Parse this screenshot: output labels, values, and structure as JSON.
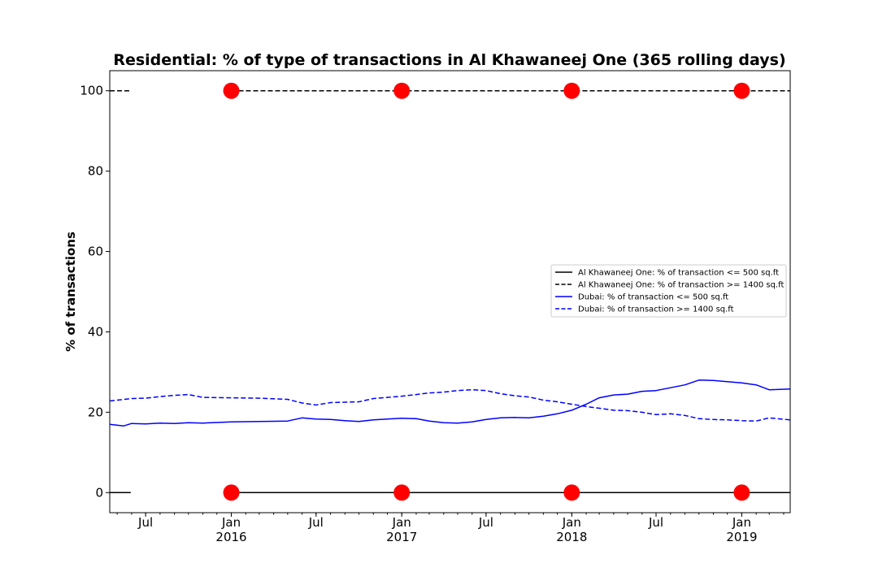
{
  "chart_data": {
    "type": "line",
    "title": "Residential: % of type of transactions in Al Khawaneej One (365 rolling days)",
    "ylabel": "% of transactions",
    "xlabel": "",
    "xlim": [
      "2015-04-15",
      "2019-04-15"
    ],
    "ylim": [
      -5,
      105
    ],
    "y_ticks": [
      0,
      20,
      40,
      60,
      80,
      100
    ],
    "x_ticks": [
      {
        "date": "2015-07-01",
        "label": "Jul",
        "sublabel": ""
      },
      {
        "date": "2016-01-01",
        "label": "Jan",
        "sublabel": "2016"
      },
      {
        "date": "2016-07-01",
        "label": "Jul",
        "sublabel": ""
      },
      {
        "date": "2017-01-01",
        "label": "Jan",
        "sublabel": "2017"
      },
      {
        "date": "2017-07-01",
        "label": "Jul",
        "sublabel": ""
      },
      {
        "date": "2018-01-01",
        "label": "Jan",
        "sublabel": "2018"
      },
      {
        "date": "2018-07-01",
        "label": "Jul",
        "sublabel": ""
      },
      {
        "date": "2019-01-01",
        "label": "Jan",
        "sublabel": "2019"
      }
    ],
    "legend_position": "center-right",
    "series": [
      {
        "name": "Al Khawaneej One: % of transaction <= 500 sq.ft",
        "color": "#000000",
        "style": "solid",
        "segments": [
          [
            [
              "2015-04-15",
              0
            ],
            [
              "2015-05-30",
              0
            ]
          ],
          [
            [
              "2016-01-01",
              0
            ],
            [
              "2019-04-15",
              0
            ]
          ]
        ]
      },
      {
        "name": "Al Khawaneej One: % of transaction >= 1400 sq.ft",
        "color": "#000000",
        "style": "dashed",
        "segments": [
          [
            [
              "2015-04-15",
              100
            ],
            [
              "2015-05-30",
              100
            ]
          ],
          [
            [
              "2016-01-01",
              100
            ],
            [
              "2019-04-15",
              100
            ]
          ]
        ]
      },
      {
        "name": "Dubai: % of transaction <= 500 sq.ft",
        "color": "#0000ff",
        "style": "solid",
        "points": [
          [
            "2015-04-15",
            17.0
          ],
          [
            "2015-05-15",
            16.6
          ],
          [
            "2015-06-01",
            17.2
          ],
          [
            "2015-07-01",
            17.1
          ],
          [
            "2015-08-01",
            17.3
          ],
          [
            "2015-09-01",
            17.2
          ],
          [
            "2015-10-01",
            17.4
          ],
          [
            "2015-11-01",
            17.3
          ],
          [
            "2016-01-01",
            17.6
          ],
          [
            "2016-03-01",
            17.7
          ],
          [
            "2016-05-01",
            17.8
          ],
          [
            "2016-06-01",
            18.6
          ],
          [
            "2016-07-01",
            18.3
          ],
          [
            "2016-08-01",
            18.2
          ],
          [
            "2016-09-01",
            17.9
          ],
          [
            "2016-10-01",
            17.7
          ],
          [
            "2016-11-01",
            18.1
          ],
          [
            "2016-12-01",
            18.3
          ],
          [
            "2017-01-01",
            18.5
          ],
          [
            "2017-02-01",
            18.4
          ],
          [
            "2017-03-01",
            17.8
          ],
          [
            "2017-04-01",
            17.4
          ],
          [
            "2017-05-01",
            17.3
          ],
          [
            "2017-06-01",
            17.6
          ],
          [
            "2017-07-01",
            18.2
          ],
          [
            "2017-08-01",
            18.6
          ],
          [
            "2017-09-01",
            18.7
          ],
          [
            "2017-10-01",
            18.6
          ],
          [
            "2017-11-01",
            19.0
          ],
          [
            "2017-12-01",
            19.6
          ],
          [
            "2018-01-01",
            20.5
          ],
          [
            "2018-02-01",
            22.0
          ],
          [
            "2018-03-01",
            23.6
          ],
          [
            "2018-04-01",
            24.3
          ],
          [
            "2018-05-01",
            24.5
          ],
          [
            "2018-06-01",
            25.2
          ],
          [
            "2018-07-01",
            25.4
          ],
          [
            "2018-08-01",
            26.1
          ],
          [
            "2018-09-01",
            26.8
          ],
          [
            "2018-10-01",
            28.0
          ],
          [
            "2018-11-01",
            27.9
          ],
          [
            "2018-12-01",
            27.6
          ],
          [
            "2019-01-01",
            27.3
          ],
          [
            "2019-02-01",
            26.8
          ],
          [
            "2019-03-01",
            25.6
          ],
          [
            "2019-04-15",
            25.8
          ]
        ]
      },
      {
        "name": "Dubai: % of transaction >= 1400 sq.ft",
        "color": "#0000ff",
        "style": "dashed",
        "points": [
          [
            "2015-04-15",
            22.8
          ],
          [
            "2015-06-01",
            23.4
          ],
          [
            "2015-07-01",
            23.5
          ],
          [
            "2015-08-01",
            23.9
          ],
          [
            "2015-09-01",
            24.2
          ],
          [
            "2015-10-01",
            24.4
          ],
          [
            "2015-11-01",
            23.7
          ],
          [
            "2016-01-01",
            23.6
          ],
          [
            "2016-03-01",
            23.5
          ],
          [
            "2016-05-01",
            23.2
          ],
          [
            "2016-06-01",
            22.3
          ],
          [
            "2016-07-01",
            21.8
          ],
          [
            "2016-08-01",
            22.4
          ],
          [
            "2016-10-01",
            22.6
          ],
          [
            "2016-11-01",
            23.4
          ],
          [
            "2017-01-01",
            24.0
          ],
          [
            "2017-02-01",
            24.4
          ],
          [
            "2017-03-01",
            24.8
          ],
          [
            "2017-04-01",
            25.0
          ],
          [
            "2017-05-01",
            25.4
          ],
          [
            "2017-06-01",
            25.6
          ],
          [
            "2017-07-01",
            25.4
          ],
          [
            "2017-08-01",
            24.6
          ],
          [
            "2017-09-01",
            24.1
          ],
          [
            "2017-10-01",
            23.8
          ],
          [
            "2017-11-01",
            23.0
          ],
          [
            "2017-12-01",
            22.6
          ],
          [
            "2018-01-01",
            22.0
          ],
          [
            "2018-02-01",
            21.4
          ],
          [
            "2018-03-01",
            21.0
          ],
          [
            "2018-04-01",
            20.5
          ],
          [
            "2018-05-01",
            20.4
          ],
          [
            "2018-06-01",
            20.0
          ],
          [
            "2018-07-01",
            19.4
          ],
          [
            "2018-08-01",
            19.6
          ],
          [
            "2018-09-01",
            19.2
          ],
          [
            "2018-10-01",
            18.4
          ],
          [
            "2018-11-01",
            18.2
          ],
          [
            "2018-12-01",
            18.1
          ],
          [
            "2019-01-01",
            17.9
          ],
          [
            "2019-02-01",
            17.8
          ],
          [
            "2019-03-01",
            18.6
          ],
          [
            "2019-04-15",
            18.1
          ]
        ]
      }
    ],
    "markers": {
      "color": "#ff0000",
      "points": [
        [
          "2016-01-01",
          100
        ],
        [
          "2017-01-01",
          100
        ],
        [
          "2018-01-01",
          100
        ],
        [
          "2019-01-01",
          100
        ],
        [
          "2016-01-01",
          0
        ],
        [
          "2017-01-01",
          0
        ],
        [
          "2018-01-01",
          0
        ],
        [
          "2019-01-01",
          0
        ]
      ]
    }
  }
}
